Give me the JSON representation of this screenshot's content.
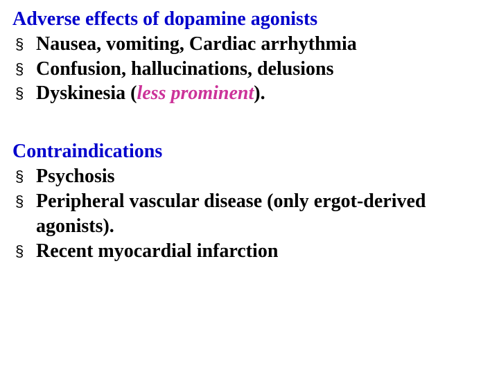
{
  "colors": {
    "heading_blue": "#0000cc",
    "text_black": "#000000",
    "accent_pink": "#cc3399",
    "background": "#ffffff",
    "bullet": "#000000"
  },
  "typography": {
    "font_family": "Times New Roman",
    "font_size_pt": 28,
    "weight": "bold",
    "bullet_glyph": "§"
  },
  "section1": {
    "heading": "Adverse effects of dopamine agonists",
    "items": {
      "i0": "Nausea, vomiting, Cardiac arrhythmia",
      "i1": "Confusion, hallucinations, delusions",
      "i2_pre": "Dyskinesia (",
      "i2_em": "less prominent",
      "i2_post": ")."
    }
  },
  "section2": {
    "heading": "Contraindications",
    "items": {
      "i0": "Psychosis",
      "i1": "Peripheral vascular disease (only ergot-derived agonists).",
      "i2": "Recent myocardial infarction"
    }
  }
}
